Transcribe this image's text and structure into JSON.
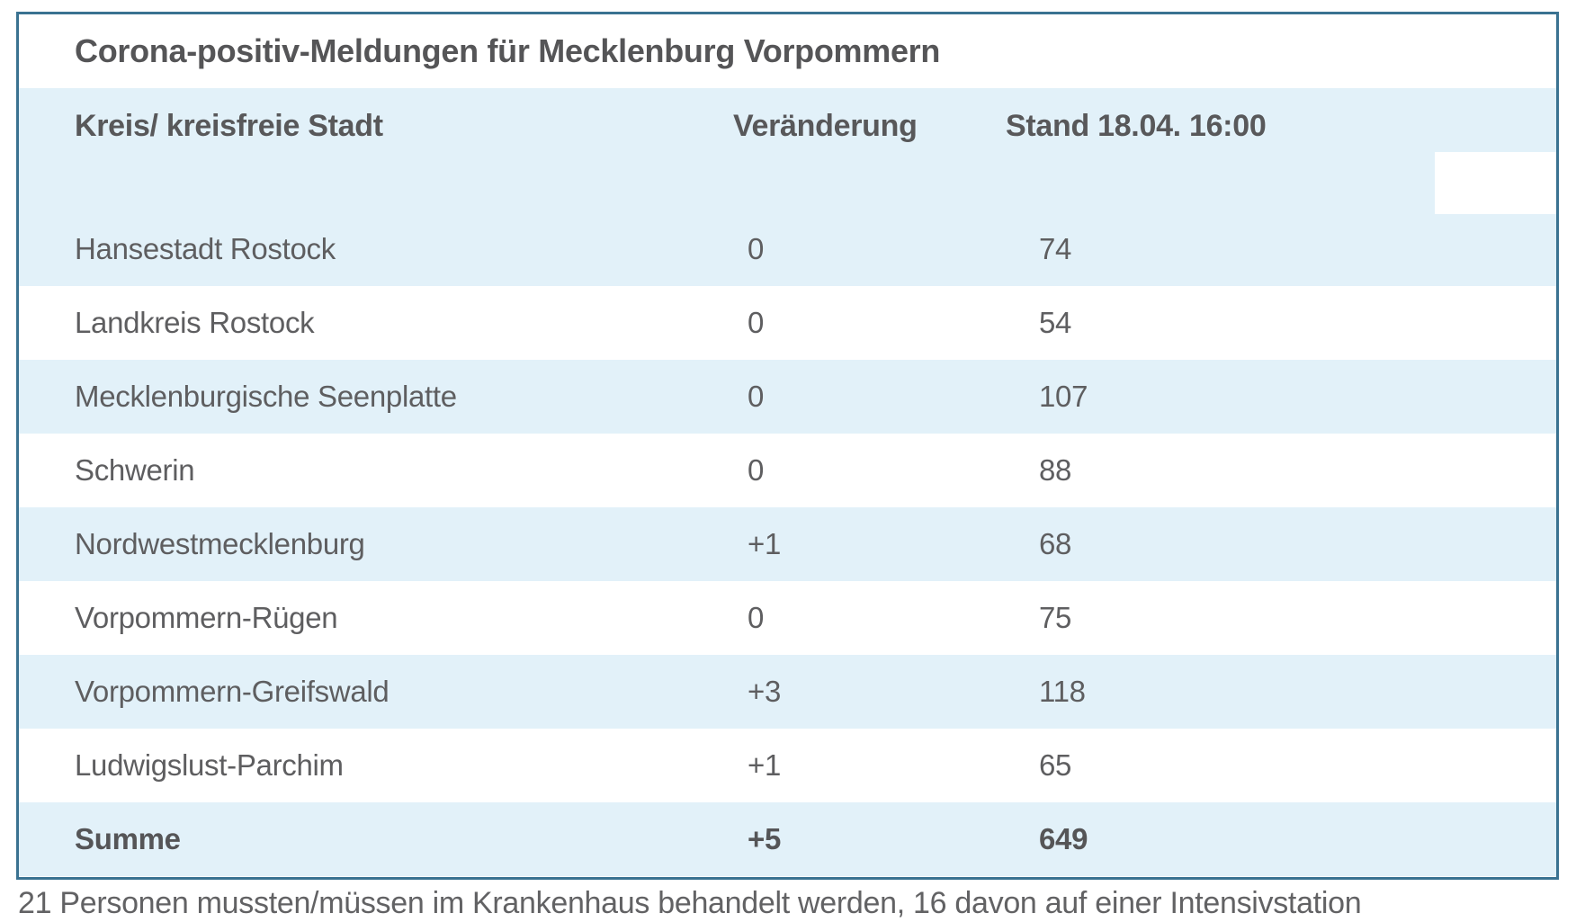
{
  "chart_data": {
    "type": "table",
    "title": "Corona-positiv-Meldungen für Mecklenburg Vorpommern",
    "columns": [
      "Kreis/ kreisfreie Stadt",
      "Veränderung",
      "Stand 18.04. 16:00"
    ],
    "rows": [
      [
        "Hansestadt Rostock",
        "0",
        "74"
      ],
      [
        "Landkreis Rostock",
        "0",
        "54"
      ],
      [
        "Mecklenburgische Seenplatte",
        "0",
        "107"
      ],
      [
        "Schwerin",
        "0",
        "88"
      ],
      [
        "Nordwestmecklenburg",
        "+1",
        "68"
      ],
      [
        "Vorpommern-Rügen",
        "0",
        "75"
      ],
      [
        "Vorpommern-Greifswald",
        "+3",
        "118"
      ],
      [
        "Ludwigslust-Parchim",
        "+1",
        "65"
      ]
    ],
    "total_row": [
      "Summe",
      "+5",
      "649"
    ],
    "layout": "alternating light-blue and white rows, no gridlines, left-aligned columns"
  },
  "footer_note": "21 Personen mussten/müssen im Krankenhaus behandelt werden, 16 davon auf einer Intensivstation",
  "colors": {
    "table_border": "#3a7291",
    "row_highlight": "#e2f1f9",
    "text_gray": "#5e5e60"
  }
}
